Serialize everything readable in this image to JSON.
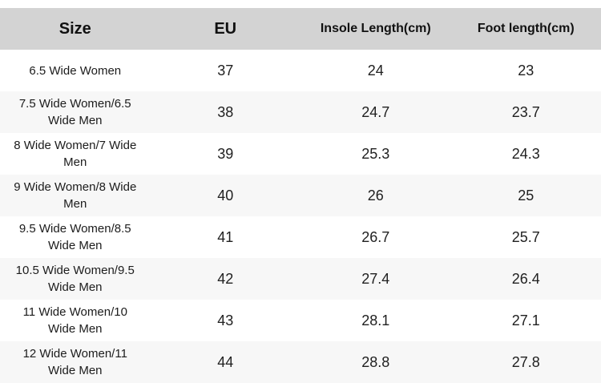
{
  "table": {
    "columns": [
      {
        "label": "Size"
      },
      {
        "label": "EU"
      },
      {
        "label": "Insole Length(cm)"
      },
      {
        "label": "Foot length(cm)"
      }
    ],
    "rows": [
      {
        "size": "6.5 Wide Women",
        "eu": "37",
        "insole_cm": "24",
        "foot_cm": "23"
      },
      {
        "size": "7.5 Wide Women/6.5 Wide Men",
        "eu": "38",
        "insole_cm": "24.7",
        "foot_cm": "23.7"
      },
      {
        "size": "8 Wide Women/7 Wide Men",
        "eu": "39",
        "insole_cm": "25.3",
        "foot_cm": "24.3"
      },
      {
        "size": "9 Wide Women/8 Wide Men",
        "eu": "40",
        "insole_cm": "26",
        "foot_cm": "25"
      },
      {
        "size": "9.5 Wide Women/8.5 Wide Men",
        "eu": "41",
        "insole_cm": "26.7",
        "foot_cm": "25.7"
      },
      {
        "size": "10.5 Wide Women/9.5 Wide Men",
        "eu": "42",
        "insole_cm": "27.4",
        "foot_cm": "26.4"
      },
      {
        "size": "11 Wide Women/10 Wide Men",
        "eu": "43",
        "insole_cm": "28.1",
        "foot_cm": "27.1"
      },
      {
        "size": "12 Wide Women/11 Wide Men",
        "eu": "44",
        "insole_cm": "28.8",
        "foot_cm": "27.8"
      }
    ]
  },
  "colors": {
    "header_bg": "#d3d3d3",
    "row_alt_bg": "#f7f7f7",
    "row_bg": "#ffffff",
    "header_text": "#111111",
    "body_text": "#212121"
  }
}
